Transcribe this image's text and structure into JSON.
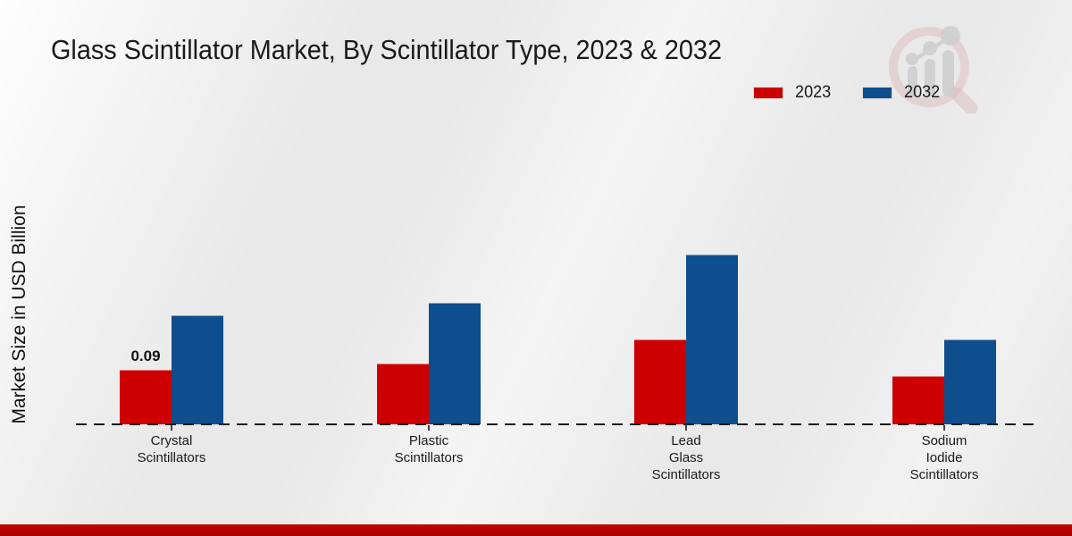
{
  "title": "Glass Scintillator Market, By Scintillator Type, 2023 & 2032",
  "ylabel": "Market Size in USD Billion",
  "colors": {
    "series_2023": "#cc0000",
    "series_2032": "#0f4e8c",
    "axis": "#1a1a1a",
    "footer_band": "#b80500",
    "watermark_gray": "#cfcfcf",
    "watermark_pink": "#ddbfbf"
  },
  "chart_data": {
    "type": "bar",
    "title": "Glass Scintillator Market, By Scintillator Type, 2023 & 2032",
    "xlabel": "",
    "ylabel": "Market Size in USD Billion",
    "categories": [
      "Crystal Scintillators",
      "Plastic Scintillators",
      "Lead Glass Scintillators",
      "Sodium Iodide Scintillators"
    ],
    "category_label_lines": [
      [
        "Crystal",
        "Scintillators"
      ],
      [
        "Plastic",
        "Scintillators"
      ],
      [
        "Lead",
        "Glass",
        "Scintillators"
      ],
      [
        "Sodium",
        "Iodide",
        "Scintillators"
      ]
    ],
    "series": [
      {
        "name": "2023",
        "color": "#cc0000",
        "values": [
          0.09,
          0.1,
          0.14,
          0.08
        ]
      },
      {
        "name": "2032",
        "color": "#0f4e8c",
        "values": [
          0.18,
          0.2,
          0.28,
          0.14
        ]
      }
    ],
    "data_labels": [
      {
        "series": "2023",
        "category_index": 0,
        "text": "0.09"
      }
    ],
    "ylim": [
      0,
      0.3
    ],
    "grid": false,
    "y_axis_ticks_visible": false,
    "baseline_style": "dashed",
    "legend_position": "top-right"
  }
}
